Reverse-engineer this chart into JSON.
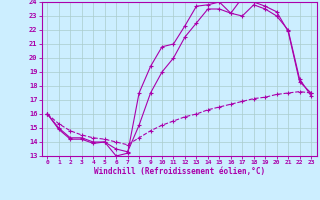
{
  "title": "",
  "xlabel": "Windchill (Refroidissement éolien,°C)",
  "ylabel": "",
  "xlim": [
    -0.5,
    23.5
  ],
  "ylim": [
    13,
    24
  ],
  "xticks": [
    0,
    1,
    2,
    3,
    4,
    5,
    6,
    7,
    8,
    9,
    10,
    11,
    12,
    13,
    14,
    15,
    16,
    17,
    18,
    19,
    20,
    21,
    22,
    23
  ],
  "yticks": [
    13,
    14,
    15,
    16,
    17,
    18,
    19,
    20,
    21,
    22,
    23,
    24
  ],
  "bg_color": "#cceeff",
  "grid_color": "#aacccc",
  "line_color": "#aa00aa",
  "line1_x": [
    0,
    1,
    2,
    3,
    4,
    5,
    6,
    7,
    8,
    9,
    10,
    11,
    12,
    13,
    14,
    15,
    16,
    17,
    18,
    19,
    20,
    21,
    22,
    23
  ],
  "line1_y": [
    16.0,
    14.9,
    14.2,
    14.2,
    13.9,
    14.0,
    13.0,
    13.2,
    17.5,
    19.4,
    20.8,
    21.0,
    22.3,
    23.7,
    23.8,
    24.0,
    23.2,
    24.3,
    24.0,
    23.7,
    23.3,
    21.9,
    18.3,
    17.5
  ],
  "line2_x": [
    0,
    1,
    2,
    3,
    4,
    5,
    6,
    7,
    8,
    9,
    10,
    11,
    12,
    13,
    14,
    15,
    16,
    17,
    18,
    19,
    20,
    21,
    22,
    23
  ],
  "line2_y": [
    16.0,
    15.0,
    14.3,
    14.3,
    14.0,
    14.0,
    13.5,
    13.3,
    15.2,
    17.5,
    19.0,
    20.0,
    21.5,
    22.5,
    23.5,
    23.5,
    23.2,
    23.0,
    23.8,
    23.5,
    23.0,
    22.0,
    18.5,
    17.3
  ],
  "line3_x": [
    0,
    1,
    2,
    3,
    4,
    5,
    6,
    7,
    8,
    9,
    10,
    11,
    12,
    13,
    14,
    15,
    16,
    17,
    18,
    19,
    20,
    21,
    22,
    23
  ],
  "line3_y": [
    16.0,
    15.3,
    14.8,
    14.5,
    14.3,
    14.2,
    14.0,
    13.8,
    14.3,
    14.8,
    15.2,
    15.5,
    15.8,
    16.0,
    16.3,
    16.5,
    16.7,
    16.9,
    17.1,
    17.2,
    17.4,
    17.5,
    17.6,
    17.5
  ]
}
